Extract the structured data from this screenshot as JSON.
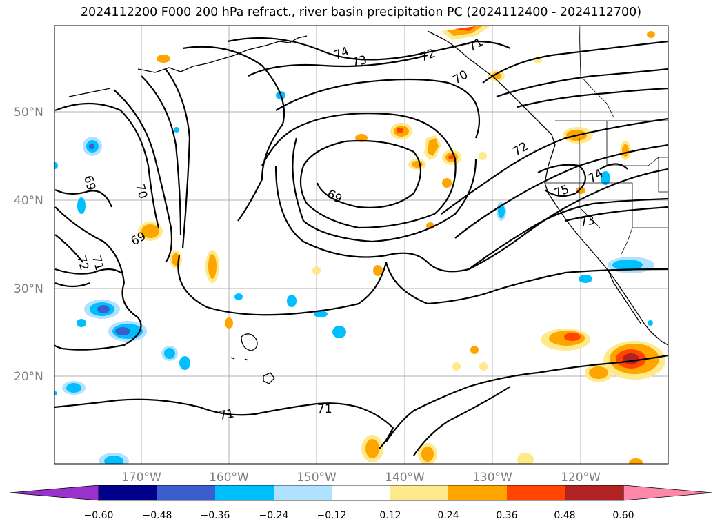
{
  "title": "2024112200 F000 200 hPa refract., river basin precipitation PC (2024112400 - 2024112700)",
  "map": {
    "lat_labels": [
      {
        "label": "50°N",
        "lat": 50
      },
      {
        "label": "40°N",
        "lat": 40
      },
      {
        "label": "30°N",
        "lat": 30
      },
      {
        "label": "20°N",
        "lat": 20
      }
    ],
    "lon_labels": [
      {
        "label": "170°W",
        "lon": -170
      },
      {
        "label": "160°W",
        "lon": -160
      },
      {
        "label": "150°W",
        "lon": -150
      },
      {
        "label": "140°W",
        "lon": -140
      },
      {
        "label": "130°W",
        "lon": -130
      },
      {
        "label": "120°W",
        "lon": -120
      }
    ],
    "contour_labels": [
      "74",
      "73",
      "72",
      "71",
      "70",
      "69",
      "69",
      "70",
      "69",
      "72",
      "71",
      "72",
      "75",
      "74",
      "73",
      "71",
      "71"
    ]
  },
  "colorbar": {
    "colors": [
      "#9932cc",
      "#00008b",
      "#3a5fcd",
      "#00bfff",
      "#b0e2ff",
      "#ffffff",
      "#fee98b",
      "#ffa500",
      "#ff4500",
      "#b22222",
      "#ff88aa"
    ],
    "tick_labels": [
      "−0.60",
      "−0.48",
      "−0.36",
      "−0.24",
      "−0.12",
      "0.12",
      "0.24",
      "0.36",
      "0.48",
      "0.60"
    ]
  }
}
